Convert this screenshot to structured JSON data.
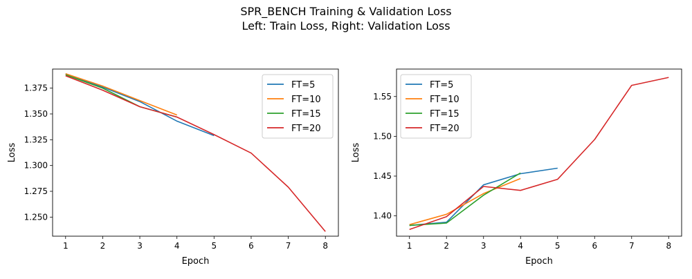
{
  "figure": {
    "suptitle_line1": "SPR_BENCH Training & Validation Loss",
    "suptitle_line2": "Left: Train Loss, Right: Validation Loss"
  },
  "colors": {
    "FT=5": "#1f77b4",
    "FT=10": "#ff7f0e",
    "FT=15": "#2ca02c",
    "FT=20": "#d62728"
  },
  "chart_data": [
    {
      "type": "line",
      "xlabel": "Epoch",
      "ylabel": "Loss",
      "xlim": [
        0.65,
        8.35
      ],
      "ylim": [
        1.2315,
        1.3935
      ],
      "xticks": [
        1,
        2,
        3,
        4,
        5,
        6,
        7,
        8
      ],
      "yticks": [
        1.25,
        1.275,
        1.3,
        1.325,
        1.35,
        1.375
      ],
      "ytick_labels": [
        "1.250",
        "1.275",
        "1.300",
        "1.325",
        "1.350",
        "1.375"
      ],
      "legend": "upper right",
      "grid": false,
      "series": [
        {
          "name": "FT=5",
          "x": [
            1,
            2,
            3,
            4,
            5
          ],
          "y": [
            1.389,
            1.376,
            1.362,
            1.343,
            1.329
          ]
        },
        {
          "name": "FT=10",
          "x": [
            1,
            2,
            3,
            4
          ],
          "y": [
            1.389,
            1.377,
            1.363,
            1.349
          ]
        },
        {
          "name": "FT=15",
          "x": [
            1,
            2,
            3,
            4
          ],
          "y": [
            1.388,
            1.375,
            1.357,
            1.347
          ]
        },
        {
          "name": "FT=20",
          "x": [
            1,
            2,
            3,
            4,
            5,
            6,
            7,
            8
          ],
          "y": [
            1.387,
            1.373,
            1.357,
            1.347,
            1.33,
            1.312,
            1.279,
            1.236
          ]
        }
      ]
    },
    {
      "type": "line",
      "xlabel": "Epoch",
      "ylabel": "Loss",
      "xlim": [
        0.65,
        8.35
      ],
      "ylim": [
        1.3745,
        1.5845
      ],
      "xticks": [
        1,
        2,
        3,
        4,
        5,
        6,
        7,
        8
      ],
      "yticks": [
        1.4,
        1.45,
        1.5,
        1.55
      ],
      "ytick_labels": [
        "1.40",
        "1.45",
        "1.50",
        "1.55"
      ],
      "legend": "upper left",
      "grid": false,
      "series": [
        {
          "name": "FT=5",
          "x": [
            1,
            2,
            3,
            4,
            5
          ],
          "y": [
            1.388,
            1.392,
            1.439,
            1.453,
            1.46
          ]
        },
        {
          "name": "FT=10",
          "x": [
            1,
            2,
            3,
            4
          ],
          "y": [
            1.389,
            1.402,
            1.428,
            1.447
          ]
        },
        {
          "name": "FT=15",
          "x": [
            1,
            2,
            3,
            4
          ],
          "y": [
            1.388,
            1.391,
            1.426,
            1.454
          ]
        },
        {
          "name": "FT=20",
          "x": [
            1,
            2,
            3,
            4,
            5,
            6,
            7,
            8
          ],
          "y": [
            1.383,
            1.399,
            1.437,
            1.432,
            1.446,
            1.496,
            1.564,
            1.574
          ]
        }
      ]
    }
  ]
}
